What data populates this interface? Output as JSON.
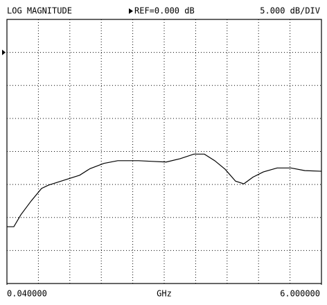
{
  "chart_data": {
    "type": "line",
    "title": "LOG MAGNITUDE",
    "ref_label": "REF=0.000 dB",
    "scale_label": "5.000 dB/DIV",
    "ref_level": 0,
    "xlabel": "GHz",
    "x": [
      0.04,
      0.171,
      0.303,
      0.499,
      0.696,
      0.828,
      1.025,
      1.221,
      1.418,
      1.615,
      1.878,
      2.14,
      2.534,
      2.797,
      3.059,
      3.322,
      3.584,
      3.781,
      3.978,
      4.175,
      4.372,
      4.53,
      4.7,
      4.897,
      5.16,
      5.422,
      5.685,
      6.0
    ],
    "values": [
      -26.4,
      -26.4,
      -24.6,
      -22.5,
      -20.6,
      -20.1,
      -19.6,
      -19.1,
      -18.6,
      -17.6,
      -16.8,
      -16.4,
      -16.4,
      -16.5,
      -16.6,
      -16.1,
      -15.4,
      -15.4,
      -16.4,
      -17.7,
      -19.5,
      -19.9,
      -18.9,
      -18.1,
      -17.5,
      -17.5,
      -17.9,
      -18.0
    ],
    "color": "#000000",
    "xlim": [
      0.04,
      6.0
    ],
    "xticks": [
      {
        "value": 0.04,
        "label": "0.040000"
      },
      {
        "value": 6.0,
        "label": "6.000000"
      }
    ],
    "x_divisions": 10,
    "ylim": [
      -35,
      5
    ],
    "yticks": [
      -35,
      -30,
      -25,
      -20,
      -15,
      -10,
      -5,
      0,
      5
    ],
    "grid": true
  }
}
